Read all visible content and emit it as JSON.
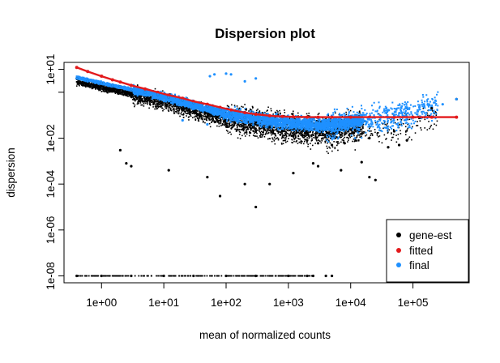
{
  "chart_data": {
    "type": "scatter",
    "title": "Dispersion plot",
    "xlabel": "mean of normalized counts",
    "ylabel": "dispersion",
    "x_scale": "log10",
    "y_scale": "log10",
    "xlim": [
      0.25,
      800000
    ],
    "ylim": [
      5e-09,
      20
    ],
    "x_ticks": [
      1,
      10,
      100,
      1000,
      10000,
      100000
    ],
    "x_tick_labels": [
      "1e+00",
      "1e+01",
      "1e+02",
      "1e+03",
      "1e+04",
      "1e+05"
    ],
    "y_ticks": [
      1e-08,
      1e-06,
      0.0001,
      0.01,
      1,
      10
    ],
    "y_tick_labels": [
      "1e-08",
      "1e-06",
      "1e-04",
      "1e-02",
      "",
      "1e+01"
    ],
    "grid": false,
    "legend_position": "bottom-right",
    "colors": {
      "gene_est": "#000000",
      "fitted": "#e31a1c",
      "final": "#1e90ff"
    },
    "series": [
      {
        "name": "gene-est",
        "color": "#000000",
        "x": [
          0.4,
          0.6,
          1,
          1.5,
          2,
          3,
          5,
          8,
          12,
          20,
          30,
          50,
          80,
          120,
          200,
          300,
          500,
          800,
          1200,
          2000,
          3000,
          5000,
          8000,
          12000,
          20000,
          50000,
          100000,
          2,
          2.5,
          3,
          12,
          50,
          80,
          200,
          300,
          500,
          1200,
          2500,
          3000,
          7000,
          15000,
          20000,
          25000,
          40000,
          60000,
          80000,
          200000,
          500000,
          0.4,
          1,
          3,
          10,
          30,
          100,
          300,
          1000,
          2000,
          2500,
          4000,
          5000
        ],
        "y": [
          4,
          3,
          2.5,
          2,
          1.8,
          1.4,
          1,
          0.8,
          0.6,
          0.45,
          0.35,
          0.25,
          0.18,
          0.12,
          0.08,
          0.05,
          0.03,
          0.02,
          0.012,
          0.008,
          0.006,
          0.005,
          0.006,
          0.008,
          0.01,
          0.02,
          0.08,
          0.003,
          0.0008,
          0.0006,
          0.0004,
          0.0002,
          3e-05,
          0.0001,
          1e-05,
          0.0001,
          0.0003,
          0.0008,
          0.0006,
          0.0004,
          0.0009,
          0.0002,
          0.00015,
          0.004,
          0.005,
          0.008,
          0.2,
          0.5,
          1e-08,
          1e-08,
          1e-08,
          1e-08,
          1e-08,
          1e-08,
          1e-08,
          1e-08,
          1e-08,
          1e-08,
          1e-08,
          1e-08
        ]
      },
      {
        "name": "fitted",
        "color": "#e31a1c",
        "x": [
          0.4,
          0.6,
          1,
          1.5,
          2,
          3,
          5,
          8,
          12,
          20,
          30,
          50,
          80,
          120,
          200,
          300,
          500,
          800,
          1200,
          2000,
          3000,
          5000,
          10000,
          20000,
          50000,
          100000,
          200000,
          500000
        ],
        "y": [
          12,
          8,
          5,
          3.5,
          2.8,
          2,
          1.4,
          1,
          0.75,
          0.55,
          0.4,
          0.3,
          0.22,
          0.17,
          0.13,
          0.11,
          0.095,
          0.088,
          0.085,
          0.083,
          0.082,
          0.082,
          0.082,
          0.082,
          0.082,
          0.082,
          0.082,
          0.082
        ]
      },
      {
        "name": "final",
        "color": "#1e90ff",
        "x": [
          0.4,
          0.6,
          1,
          1.5,
          2,
          3,
          5,
          8,
          12,
          20,
          30,
          50,
          80,
          120,
          200,
          300,
          500,
          800,
          1200,
          2000,
          3000,
          5000,
          8000,
          12000,
          20000,
          30000,
          50000,
          80000,
          150000,
          300000,
          500000,
          55,
          65,
          100,
          120,
          200,
          300,
          50,
          20
        ],
        "y": [
          4,
          3,
          2.5,
          2,
          1.8,
          1.4,
          1,
          0.8,
          0.6,
          0.45,
          0.35,
          0.25,
          0.18,
          0.12,
          0.08,
          0.06,
          0.045,
          0.04,
          0.035,
          0.035,
          0.04,
          0.04,
          0.05,
          0.06,
          0.07,
          0.08,
          0.1,
          0.2,
          0.3,
          0.3,
          0.5,
          5,
          6,
          6.5,
          6,
          3,
          4,
          0.04,
          0.06
        ]
      }
    ]
  }
}
